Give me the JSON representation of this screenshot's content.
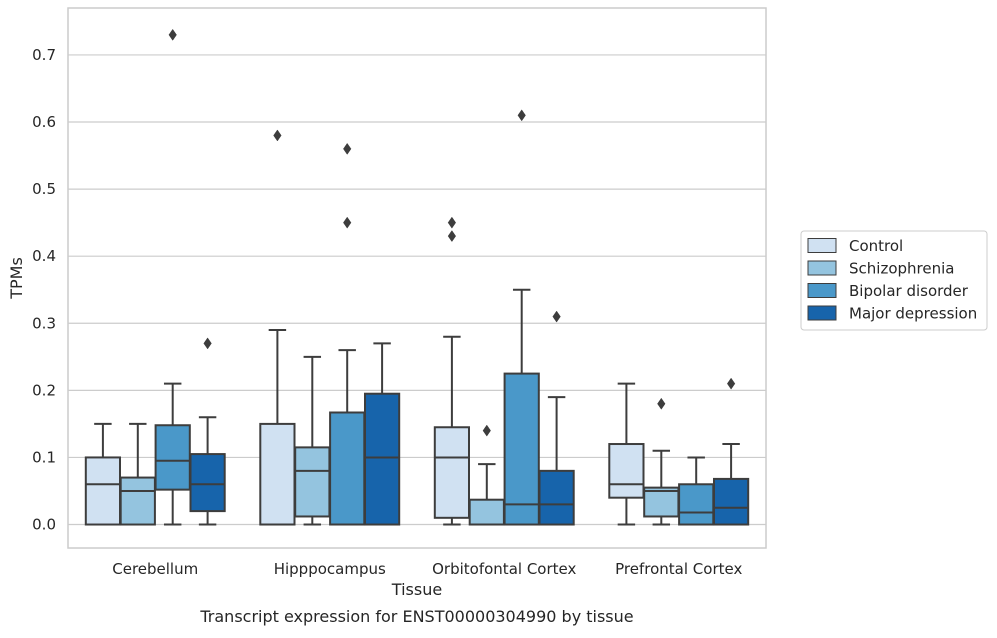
{
  "chart_data": {
    "type": "boxplot",
    "caption": "Transcript expression for ENST00000304990 by tissue",
    "xlabel": "Tissue",
    "ylabel": "TPMs",
    "ylim": [
      -0.035,
      0.77
    ],
    "yticks": [
      0.0,
      0.1,
      0.2,
      0.3,
      0.4,
      0.5,
      0.6,
      0.7
    ],
    "ytick_labels": [
      "0.0",
      "0.1",
      "0.2",
      "0.3",
      "0.4",
      "0.5",
      "0.6",
      "0.7"
    ],
    "grid": "horizontal",
    "legend_position": "right, outside plot",
    "categories": [
      "Cerebellum",
      "Hipppocampus",
      "Orbitofontal Cortex",
      "Prefrontal Cortex"
    ],
    "series": [
      {
        "name": "Control",
        "color": "#d0e1f2",
        "boxes": [
          {
            "whislo": 0.0,
            "q1": 0.0,
            "med": 0.06,
            "q3": 0.1,
            "whishi": 0.15,
            "fliers": []
          },
          {
            "whislo": 0.0,
            "q1": 0.0,
            "med": 0.0,
            "q3": 0.15,
            "whishi": 0.29,
            "fliers": [
              0.58
            ]
          },
          {
            "whislo": 0.0,
            "q1": 0.01,
            "med": 0.1,
            "q3": 0.145,
            "whishi": 0.28,
            "fliers": [
              0.43,
              0.45
            ]
          },
          {
            "whislo": 0.0,
            "q1": 0.04,
            "med": 0.06,
            "q3": 0.12,
            "whishi": 0.21,
            "fliers": []
          }
        ]
      },
      {
        "name": "Schizophrenia",
        "color": "#94c4df",
        "boxes": [
          {
            "whislo": 0.0,
            "q1": 0.0,
            "med": 0.05,
            "q3": 0.07,
            "whishi": 0.15,
            "fliers": []
          },
          {
            "whislo": 0.0,
            "q1": 0.012,
            "med": 0.08,
            "q3": 0.115,
            "whishi": 0.25,
            "fliers": []
          },
          {
            "whislo": 0.0,
            "q1": 0.0,
            "med": 0.0,
            "q3": 0.037,
            "whishi": 0.09,
            "fliers": [
              0.14
            ]
          },
          {
            "whislo": 0.0,
            "q1": 0.012,
            "med": 0.05,
            "q3": 0.055,
            "whishi": 0.11,
            "fliers": [
              0.18
            ]
          }
        ]
      },
      {
        "name": "Bipolar disorder",
        "color": "#4a98c9",
        "boxes": [
          {
            "whislo": 0.0,
            "q1": 0.052,
            "med": 0.095,
            "q3": 0.148,
            "whishi": 0.21,
            "fliers": [
              0.73
            ]
          },
          {
            "whislo": 0.0,
            "q1": 0.0,
            "med": 0.0,
            "q3": 0.167,
            "whishi": 0.26,
            "fliers": [
              0.45,
              0.56
            ]
          },
          {
            "whislo": 0.0,
            "q1": 0.0,
            "med": 0.03,
            "q3": 0.225,
            "whishi": 0.35,
            "fliers": [
              0.61
            ]
          },
          {
            "whislo": 0.0,
            "q1": 0.0,
            "med": 0.018,
            "q3": 0.06,
            "whishi": 0.1,
            "fliers": []
          }
        ]
      },
      {
        "name": "Major depression",
        "color": "#1764ab",
        "boxes": [
          {
            "whislo": 0.0,
            "q1": 0.02,
            "med": 0.06,
            "q3": 0.105,
            "whishi": 0.16,
            "fliers": [
              0.27
            ]
          },
          {
            "whislo": 0.0,
            "q1": 0.0,
            "med": 0.1,
            "q3": 0.195,
            "whishi": 0.27,
            "fliers": []
          },
          {
            "whislo": 0.0,
            "q1": 0.0,
            "med": 0.03,
            "q3": 0.08,
            "whishi": 0.19,
            "fliers": [
              0.31
            ]
          },
          {
            "whislo": 0.0,
            "q1": 0.0,
            "med": 0.025,
            "q3": 0.068,
            "whishi": 0.12,
            "fliers": [
              0.21
            ]
          }
        ]
      }
    ]
  }
}
